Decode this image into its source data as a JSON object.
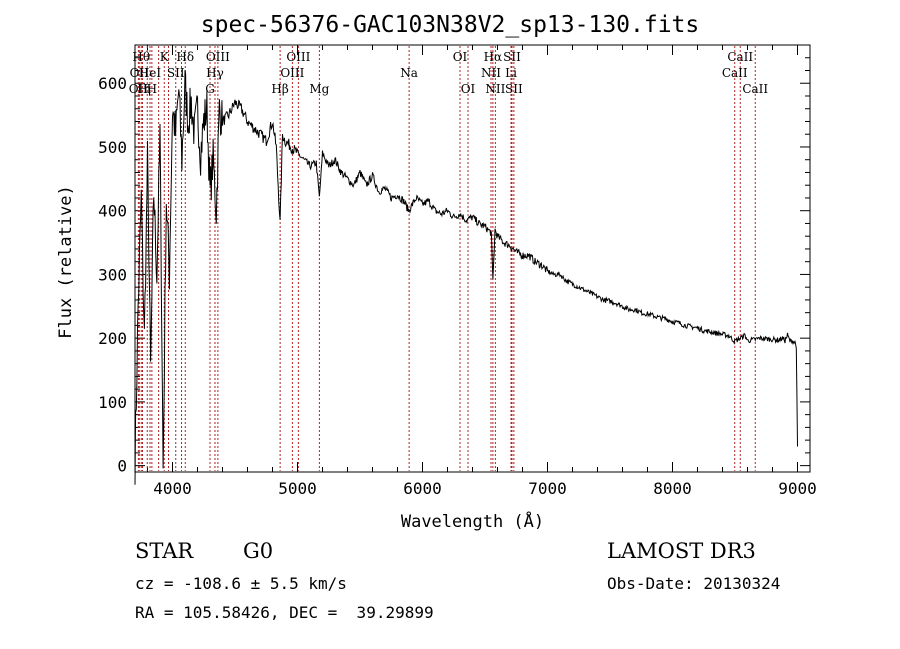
{
  "chart_data": {
    "type": "line",
    "title": "spec-56376-GAC103N38V2_sp13-130.fits",
    "xlabel": "Wavelength (Å)",
    "ylabel": "Flux (relative)",
    "xlim": [
      3700,
      9100
    ],
    "ylim": [
      -10,
      660
    ],
    "xticks": [
      4000,
      5000,
      6000,
      7000,
      8000,
      9000
    ],
    "yticks": [
      0,
      100,
      200,
      300,
      400,
      500,
      600
    ],
    "grid": false,
    "series": [
      {
        "name": "spectrum",
        "x": [
          3700,
          3725,
          3750,
          3775,
          3800,
          3825,
          3850,
          3875,
          3900,
          3925,
          3950,
          3975,
          4000,
          4025,
          4050,
          4075,
          4100,
          4125,
          4150,
          4175,
          4200,
          4225,
          4250,
          4275,
          4300,
          4325,
          4350,
          4375,
          4400,
          4450,
          4500,
          4550,
          4600,
          4650,
          4700,
          4750,
          4800,
          4830,
          4861,
          4880,
          4900,
          4950,
          5000,
          5050,
          5100,
          5150,
          5175,
          5200,
          5250,
          5300,
          5350,
          5400,
          5450,
          5500,
          5550,
          5600,
          5650,
          5700,
          5750,
          5800,
          5850,
          5890,
          5950,
          6000,
          6050,
          6100,
          6150,
          6200,
          6250,
          6300,
          6350,
          6400,
          6450,
          6500,
          6550,
          6563,
          6580,
          6600,
          6650,
          6700,
          6750,
          6800,
          6850,
          6900,
          6950,
          7000,
          7050,
          7100,
          7150,
          7200,
          7250,
          7300,
          7350,
          7400,
          7450,
          7500,
          7550,
          7600,
          7650,
          7700,
          7750,
          7800,
          7850,
          7900,
          7950,
          8000,
          8050,
          8100,
          8150,
          8200,
          8250,
          8300,
          8350,
          8400,
          8450,
          8498,
          8542,
          8580,
          8600,
          8662,
          8700,
          8750,
          8800,
          8850,
          8880,
          8900,
          8920,
          8940,
          8960,
          8980,
          8990,
          9000
        ],
        "y": [
          5,
          250,
          420,
          200,
          480,
          150,
          430,
          300,
          520,
          -5,
          420,
          300,
          560,
          520,
          590,
          480,
          600,
          540,
          570,
          520,
          560,
          490,
          540,
          560,
          430,
          480,
          400,
          560,
          540,
          550,
          570,
          560,
          540,
          530,
          520,
          510,
          540,
          500,
          380,
          520,
          510,
          500,
          490,
          480,
          470,
          475,
          420,
          490,
          470,
          480,
          460,
          450,
          440,
          460,
          440,
          455,
          430,
          435,
          420,
          425,
          415,
          400,
          420,
          410,
          415,
          400,
          395,
          400,
          390,
          395,
          385,
          390,
          380,
          375,
          365,
          290,
          370,
          360,
          350,
          345,
          335,
          330,
          330,
          320,
          315,
          305,
          300,
          300,
          290,
          285,
          280,
          275,
          270,
          265,
          260,
          258,
          255,
          250,
          245,
          245,
          240,
          238,
          235,
          232,
          230,
          226,
          224,
          220,
          218,
          216,
          212,
          210,
          208,
          206,
          204,
          195,
          200,
          205,
          196,
          198,
          200,
          199,
          198,
          197,
          200,
          196,
          205,
          195,
          196,
          193,
          188,
          30
        ]
      }
    ],
    "lines": [
      {
        "wavelength": 3727,
        "label": "OII",
        "tier": 2
      },
      {
        "wavelength": 3734,
        "label": "OII",
        "tier": 1
      },
      {
        "wavelength": 3750,
        "label": "Hθ",
        "tier": 0
      },
      {
        "wavelength": 3760,
        "label": "H",
        "tier": 2
      },
      {
        "wavelength": 3798,
        "label": "η",
        "tier": 2
      },
      {
        "wavelength": 3820,
        "label": "HeI",
        "tier": 1
      },
      {
        "wavelength": 3835,
        "label": "H",
        "tier": 2
      },
      {
        "wavelength": 3889,
        "label": "",
        "tier": -1
      },
      {
        "wavelength": 3934,
        "label": "K",
        "tier": 0
      },
      {
        "wavelength": 3968,
        "label": "",
        "tier": -1
      },
      {
        "wavelength": 4026,
        "label": "SII",
        "tier": 1
      },
      {
        "wavelength": 4072,
        "label": "",
        "tier": -1
      },
      {
        "wavelength": 4102,
        "label": "Hδ",
        "tier": 0
      },
      {
        "wavelength": 4300,
        "label": "G",
        "tier": 2
      },
      {
        "wavelength": 4340,
        "label": "Hγ",
        "tier": 1
      },
      {
        "wavelength": 4363,
        "label": "OIII",
        "tier": 0
      },
      {
        "wavelength": 4861,
        "label": "Hβ",
        "tier": 2
      },
      {
        "wavelength": 4959,
        "label": "OIII",
        "tier": 1
      },
      {
        "wavelength": 5007,
        "label": "OIII",
        "tier": 0
      },
      {
        "wavelength": 5175,
        "label": "Mg",
        "tier": 2
      },
      {
        "wavelength": 5893,
        "label": "Na",
        "tier": 1
      },
      {
        "wavelength": 6300,
        "label": "OI",
        "tier": 0
      },
      {
        "wavelength": 6364,
        "label": "OI",
        "tier": 2
      },
      {
        "wavelength": 6548,
        "label": "NII",
        "tier": 1
      },
      {
        "wavelength": 6563,
        "label": "Hα",
        "tier": 0
      },
      {
        "wavelength": 6583,
        "label": "NII",
        "tier": 2
      },
      {
        "wavelength": 6708,
        "label": "Li",
        "tier": 1
      },
      {
        "wavelength": 6716,
        "label": "SII",
        "tier": 0
      },
      {
        "wavelength": 6731,
        "label": "SII",
        "tier": 2
      },
      {
        "wavelength": 8498,
        "label": "CaII",
        "tier": 1
      },
      {
        "wavelength": 8542,
        "label": "CaII",
        "tier": 0
      },
      {
        "wavelength": 8662,
        "label": "CaII",
        "tier": 2
      }
    ],
    "colors": {
      "spectrum": "#000000",
      "line_markers": "#b22222",
      "axes": "#000000"
    }
  },
  "info": {
    "class": "STAR",
    "subclass": "G0",
    "survey": "LAMOST DR3",
    "cz": "cz = -108.6 ± 5.5 km/s",
    "obs_date": "Obs-Date: 20130324",
    "coords": "RA = 105.58426, DEC =  39.29899"
  }
}
